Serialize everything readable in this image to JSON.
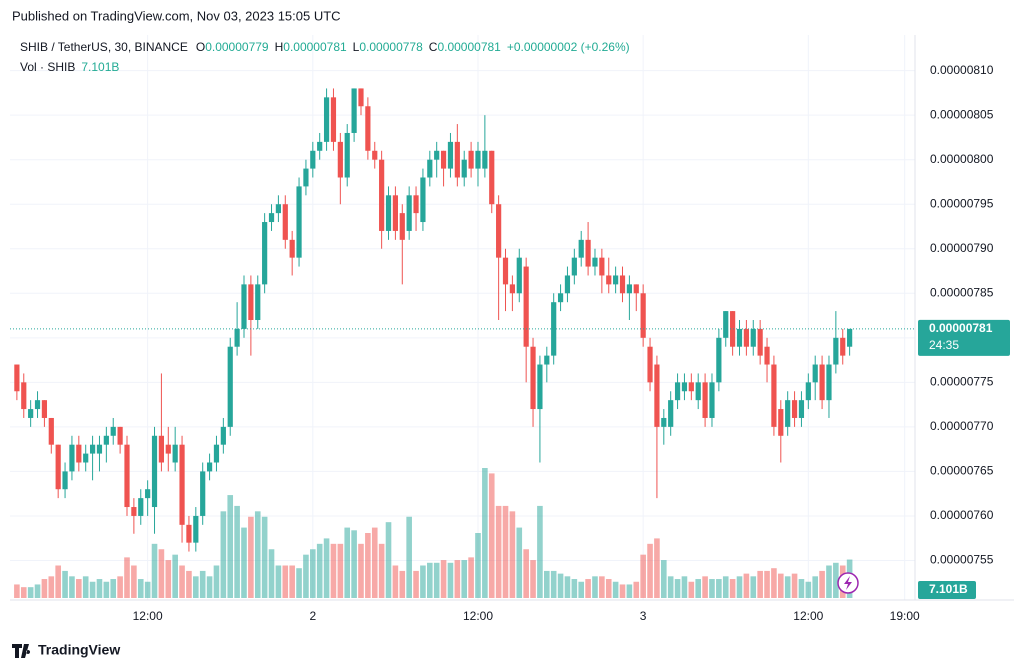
{
  "header": {
    "published": "Published on TradingView.com, Nov 03, 2023 15:05 UTC",
    "footer_brand": "TradingView"
  },
  "chart_data": {
    "type": "candlestick",
    "symbol": "SHIB / TetherUS, 30, BINANCE",
    "ohlc_legend": [
      {
        "key": "O",
        "value": "0.00000779"
      },
      {
        "key": "H",
        "value": "0.00000781"
      },
      {
        "key": "L",
        "value": "0.00000778"
      },
      {
        "key": "C",
        "value": "0.00000781"
      }
    ],
    "change": "+0.00000002 (+0.26%)",
    "volume_title": "Vol · SHIB",
    "volume_legend": "7.101B",
    "price_label": "0.00000781",
    "countdown": "24:35",
    "volume_label": "7.101B",
    "up_color": "#26a69a",
    "down_color": "#ef5350",
    "grid": true,
    "ylim": [
      7.5e-06,
      8.14e-06
    ],
    "yticks": [
      {
        "value": 8.1e-06,
        "label": "0.00000810"
      },
      {
        "value": 8.05e-06,
        "label": "0.00000805"
      },
      {
        "value": 8e-06,
        "label": "0.00000800"
      },
      {
        "value": 7.95e-06,
        "label": "0.00000795"
      },
      {
        "value": 7.9e-06,
        "label": "0.00000790"
      },
      {
        "value": 7.85e-06,
        "label": "0.00000785"
      },
      {
        "value": 7.8e-06,
        "label": "0.00000780"
      },
      {
        "value": 7.75e-06,
        "label": "0.00000775"
      },
      {
        "value": 7.7e-06,
        "label": "0.00000770"
      },
      {
        "value": 7.65e-06,
        "label": "0.00000765"
      },
      {
        "value": 7.6e-06,
        "label": "0.00000760"
      },
      {
        "value": 7.55e-06,
        "label": "0.00000755"
      }
    ],
    "xlim": [
      -1,
      130.5
    ],
    "xticks": [
      {
        "value": 19,
        "label": "12:00"
      },
      {
        "value": 43,
        "label": "2"
      },
      {
        "value": 67,
        "label": "12:00"
      },
      {
        "value": 91,
        "label": "3"
      },
      {
        "value": 115,
        "label": "12:00"
      },
      {
        "value": 129,
        "label": "19:00"
      }
    ],
    "open": [
      7.77e-06,
      7.75e-06,
      7.71e-06,
      7.72e-06,
      7.73e-06,
      7.71e-06,
      7.68e-06,
      7.63e-06,
      7.65e-06,
      7.68e-06,
      7.66e-06,
      7.67e-06,
      7.67e-06,
      7.68e-06,
      7.69e-06,
      7.7e-06,
      7.68e-06,
      7.61e-06,
      7.6e-06,
      7.62e-06,
      7.61e-06,
      7.69e-06,
      7.68e-06,
      7.66e-06,
      7.68e-06,
      7.59e-06,
      7.57e-06,
      7.6e-06,
      7.65e-06,
      7.66e-06,
      7.68e-06,
      7.7e-06,
      7.79e-06,
      7.81e-06,
      7.86e-06,
      7.82e-06,
      7.86e-06,
      7.93e-06,
      7.94e-06,
      7.95e-06,
      7.91e-06,
      7.89e-06,
      7.97e-06,
      7.99e-06,
      8.01e-06,
      8.02e-06,
      8.07e-06,
      8.02e-06,
      7.98e-06,
      8.03e-06,
      8.08e-06,
      8.06e-06,
      8.01e-06,
      8e-06,
      7.92e-06,
      7.96e-06,
      7.94e-06,
      7.92e-06,
      7.96e-06,
      7.93e-06,
      7.98e-06,
      8e-06,
      8.01e-06,
      7.99e-06,
      8.02e-06,
      7.98e-06,
      8.01e-06,
      7.99e-06,
      7.99e-06,
      8.01e-06,
      7.95e-06,
      7.89e-06,
      7.86e-06,
      7.85e-06,
      7.88e-06,
      7.79e-06,
      7.72e-06,
      7.77e-06,
      7.78e-06,
      7.84e-06,
      7.85e-06,
      7.87e-06,
      7.89e-06,
      7.91e-06,
      7.88e-06,
      7.89e-06,
      7.87e-06,
      7.86e-06,
      7.87e-06,
      7.85e-06,
      7.86e-06,
      7.85e-06,
      7.79e-06,
      7.77e-06,
      7.7e-06,
      7.7e-06,
      7.73e-06,
      7.74e-06,
      7.75e-06,
      7.73e-06,
      7.75e-06,
      7.71e-06,
      7.75e-06,
      7.8e-06,
      7.83e-06,
      7.79e-06,
      7.81e-06,
      7.79e-06,
      7.81e-06,
      7.79e-06,
      7.77e-06,
      7.72e-06,
      7.7e-06,
      7.73e-06,
      7.71e-06,
      7.73e-06,
      7.75e-06,
      7.77e-06,
      7.73e-06,
      7.77e-06,
      7.8e-06,
      7.79e-06
    ],
    "high": [
      7.77e-06,
      7.76e-06,
      7.73e-06,
      7.74e-06,
      7.73e-06,
      7.71e-06,
      7.68e-06,
      7.66e-06,
      7.69e-06,
      7.69e-06,
      7.68e-06,
      7.69e-06,
      7.69e-06,
      7.7e-06,
      7.71e-06,
      7.7e-06,
      7.69e-06,
      7.62e-06,
      7.63e-06,
      7.64e-06,
      7.7e-06,
      7.76e-06,
      7.7e-06,
      7.7e-06,
      7.69e-06,
      7.6e-06,
      7.61e-06,
      7.66e-06,
      7.67e-06,
      7.69e-06,
      7.71e-06,
      7.8e-06,
      7.84e-06,
      7.87e-06,
      7.87e-06,
      7.87e-06,
      7.94e-06,
      7.95e-06,
      7.96e-06,
      7.96e-06,
      7.92e-06,
      7.98e-06,
      8e-06,
      8.02e-06,
      8.03e-06,
      8.08e-06,
      8.08e-06,
      8.03e-06,
      8.04e-06,
      8.08e-06,
      8.08e-06,
      8.07e-06,
      8.02e-06,
      8.01e-06,
      7.97e-06,
      7.97e-06,
      7.95e-06,
      7.97e-06,
      7.97e-06,
      7.99e-06,
      8.01e-06,
      8.02e-06,
      8.01e-06,
      8.03e-06,
      8.04e-06,
      8.01e-06,
      8.02e-06,
      8.02e-06,
      8.05e-06,
      8.01e-06,
      7.96e-06,
      7.9e-06,
      7.87e-06,
      7.9e-06,
      7.89e-06,
      7.8e-06,
      7.78e-06,
      7.79e-06,
      7.85e-06,
      7.86e-06,
      7.88e-06,
      7.9e-06,
      7.92e-06,
      7.93e-06,
      7.9e-06,
      7.9e-06,
      7.89e-06,
      7.88e-06,
      7.88e-06,
      7.87e-06,
      7.86e-06,
      7.86e-06,
      7.8e-06,
      7.78e-06,
      7.72e-06,
      7.74e-06,
      7.76e-06,
      7.76e-06,
      7.76e-06,
      7.76e-06,
      7.76e-06,
      7.76e-06,
      7.81e-06,
      7.83e-06,
      7.83e-06,
      7.82e-06,
      7.82e-06,
      7.82e-06,
      7.82e-06,
      7.8e-06,
      7.78e-06,
      7.73e-06,
      7.74e-06,
      7.74e-06,
      7.74e-06,
      7.76e-06,
      7.78e-06,
      7.78e-06,
      7.78e-06,
      7.83e-06,
      7.81e-06,
      7.81e-06
    ],
    "low": [
      7.73e-06,
      7.71e-06,
      7.7e-06,
      7.71e-06,
      7.7e-06,
      7.67e-06,
      7.62e-06,
      7.62e-06,
      7.64e-06,
      7.65e-06,
      7.65e-06,
      7.64e-06,
      7.65e-06,
      7.66e-06,
      7.68e-06,
      7.67e-06,
      7.6e-06,
      7.58e-06,
      7.59e-06,
      7.6e-06,
      7.58e-06,
      7.65e-06,
      7.65e-06,
      7.65e-06,
      7.57e-06,
      7.56e-06,
      7.56e-06,
      7.59e-06,
      7.64e-06,
      7.65e-06,
      7.67e-06,
      7.69e-06,
      7.78e-06,
      7.8e-06,
      7.78e-06,
      7.81e-06,
      7.85e-06,
      7.92e-06,
      7.93e-06,
      7.9e-06,
      7.87e-06,
      7.88e-06,
      7.96e-06,
      7.98e-06,
      8e-06,
      8.01e-06,
      8.01e-06,
      7.95e-06,
      7.97e-06,
      8.02e-06,
      8.05e-06,
      8e-06,
      7.99e-06,
      7.9e-06,
      7.91e-06,
      7.91e-06,
      7.86e-06,
      7.91e-06,
      7.92e-06,
      7.92e-06,
      7.97e-06,
      7.98e-06,
      7.97e-06,
      7.98e-06,
      7.97e-06,
      7.97e-06,
      7.98e-06,
      7.97e-06,
      7.98e-06,
      7.94e-06,
      7.82e-06,
      7.83e-06,
      7.83e-06,
      7.84e-06,
      7.75e-06,
      7.7e-06,
      7.66e-06,
      7.75e-06,
      7.77e-06,
      7.83e-06,
      7.84e-06,
      7.86e-06,
      7.88e-06,
      7.87e-06,
      7.87e-06,
      7.85e-06,
      7.85e-06,
      7.85e-06,
      7.84e-06,
      7.82e-06,
      7.83e-06,
      7.79e-06,
      7.74e-06,
      7.62e-06,
      7.68e-06,
      7.69e-06,
      7.72e-06,
      7.73e-06,
      7.73e-06,
      7.72e-06,
      7.7e-06,
      7.7e-06,
      7.74e-06,
      7.79e-06,
      7.78e-06,
      7.78e-06,
      7.78e-06,
      7.78e-06,
      7.77e-06,
      7.75e-06,
      7.69e-06,
      7.66e-06,
      7.69e-06,
      7.7e-06,
      7.7e-06,
      7.72e-06,
      7.73e-06,
      7.72e-06,
      7.71e-06,
      7.76e-06,
      7.77e-06,
      7.78e-06
    ],
    "close": [
      7.74e-06,
      7.72e-06,
      7.72e-06,
      7.73e-06,
      7.71e-06,
      7.68e-06,
      7.63e-06,
      7.65e-06,
      7.68e-06,
      7.66e-06,
      7.67e-06,
      7.68e-06,
      7.68e-06,
      7.69e-06,
      7.7e-06,
      7.68e-06,
      7.61e-06,
      7.6e-06,
      7.62e-06,
      7.63e-06,
      7.69e-06,
      7.66e-06,
      7.67e-06,
      7.68e-06,
      7.59e-06,
      7.57e-06,
      7.6e-06,
      7.65e-06,
      7.66e-06,
      7.68e-06,
      7.7e-06,
      7.79e-06,
      7.81e-06,
      7.86e-06,
      7.82e-06,
      7.86e-06,
      7.93e-06,
      7.94e-06,
      7.95e-06,
      7.91e-06,
      7.89e-06,
      7.97e-06,
      7.99e-06,
      8.01e-06,
      8.02e-06,
      8.07e-06,
      8.02e-06,
      7.98e-06,
      8.03e-06,
      8.08e-06,
      8.06e-06,
      8.01e-06,
      8e-06,
      7.92e-06,
      7.96e-06,
      7.92e-06,
      7.91e-06,
      7.96e-06,
      7.94e-06,
      7.98e-06,
      8e-06,
      8.01e-06,
      7.99e-06,
      8.02e-06,
      7.98e-06,
      8e-06,
      7.99e-06,
      8.01e-06,
      8.01e-06,
      7.95e-06,
      7.89e-06,
      7.86e-06,
      7.85e-06,
      7.89e-06,
      7.79e-06,
      7.72e-06,
      7.77e-06,
      7.78e-06,
      7.84e-06,
      7.85e-06,
      7.87e-06,
      7.89e-06,
      7.91e-06,
      7.88e-06,
      7.89e-06,
      7.87e-06,
      7.86e-06,
      7.87e-06,
      7.85e-06,
      7.86e-06,
      7.85e-06,
      7.8e-06,
      7.75e-06,
      7.7e-06,
      7.71e-06,
      7.73e-06,
      7.75e-06,
      7.75e-06,
      7.74e-06,
      7.75e-06,
      7.71e-06,
      7.75e-06,
      7.8e-06,
      7.83e-06,
      7.79e-06,
      7.81e-06,
      7.79e-06,
      7.81e-06,
      7.78e-06,
      7.77e-06,
      7.7e-06,
      7.69e-06,
      7.73e-06,
      7.71e-06,
      7.73e-06,
      7.75e-06,
      7.77e-06,
      7.73e-06,
      7.77e-06,
      7.8e-06,
      7.78e-06,
      7.81e-06
    ],
    "volume": [
      2.5,
      2,
      2,
      2.5,
      3.5,
      4,
      6,
      5,
      4,
      3.5,
      4,
      3,
      3.5,
      3,
      3.5,
      4,
      7.5,
      6,
      3.5,
      3,
      10,
      9,
      7,
      8,
      6,
      5,
      4,
      5,
      4,
      6,
      16,
      19,
      17,
      13,
      15,
      16,
      15,
      9,
      6,
      6,
      6,
      5.5,
      8,
      9,
      10,
      11,
      10,
      10,
      13,
      12.5,
      10,
      12,
      13,
      10,
      14,
      6,
      5,
      15,
      5,
      6,
      6.5,
      6.5,
      7,
      6.5,
      7,
      7,
      7.5,
      12,
      24,
      23,
      17,
      17,
      16,
      13,
      9,
      7,
      17,
      5,
      5,
      4.5,
      4,
      3.5,
      3,
      3.5,
      4,
      4,
      3.5,
      3,
      2.5,
      2.5,
      3,
      8,
      10,
      11,
      7,
      4,
      3.5,
      4,
      3,
      3.5,
      4,
      3.5,
      3.5,
      4,
      3.5,
      4,
      4.5,
      4,
      5,
      5,
      5.5,
      4.5,
      4,
      4.5,
      3.5,
      3,
      4,
      5,
      6,
      6.5,
      6,
      7.101
    ]
  }
}
